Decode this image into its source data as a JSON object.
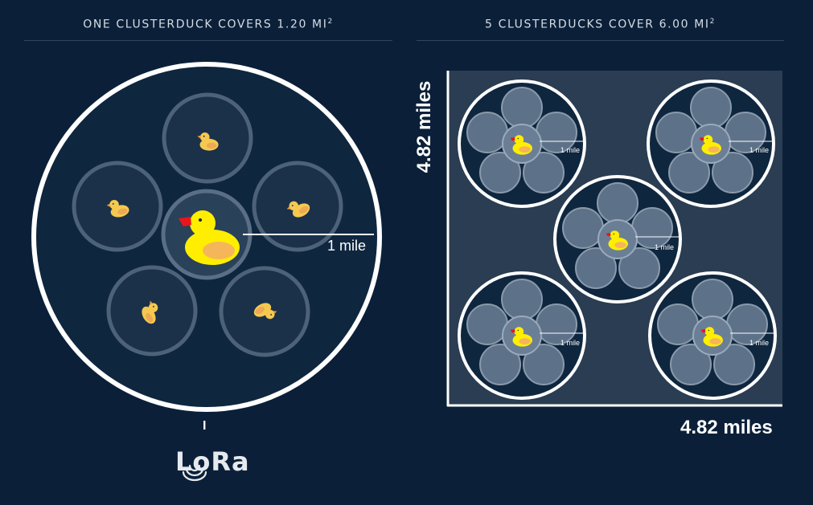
{
  "left_panel": {
    "title": "ONE CLUSTERDUCK COVERS 1.20 MI",
    "title_sup": "2",
    "radius_label": "1 mile"
  },
  "right_panel": {
    "title": "5 CLUSTERDUCKS COVER 6.00 MI",
    "title_sup": "2",
    "y_axis_label": "4.82 miles",
    "x_axis_label": "4.82 miles",
    "mini_radius_label": "1 mile"
  },
  "lora_tick": "I",
  "lora_logo": "LoRa",
  "colors": {
    "background": "#0b2038",
    "duck_yellow": "#ffee00",
    "duck_wing": "#f5b65a",
    "beak": "#e8161c"
  },
  "icons": [
    "duck-icon",
    "duckling-icon",
    "lora-logo-icon"
  ]
}
